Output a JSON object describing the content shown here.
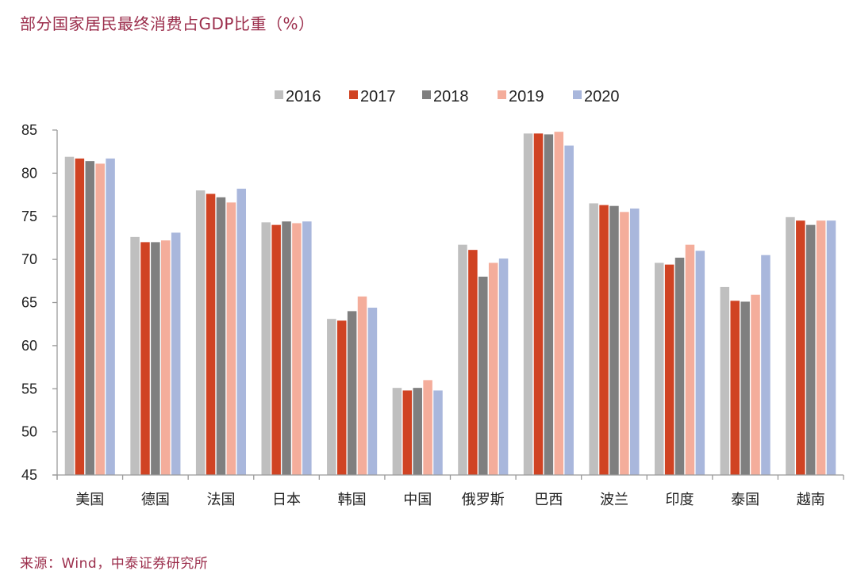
{
  "header": {
    "title": "部分国家居民最终消费占GDP比重（%）"
  },
  "footer": {
    "source": "来源：Wind，中泰证券研究所"
  },
  "chart_data": {
    "type": "bar",
    "title": "部分国家居民最终消费占GDP比重（%）",
    "xlabel": "",
    "ylabel": "",
    "ylim": [
      45,
      85
    ],
    "yticks": [
      45,
      50,
      55,
      60,
      65,
      70,
      75,
      80,
      85
    ],
    "grid": false,
    "legend_position": "top-center",
    "categories": [
      "美国",
      "德国",
      "法国",
      "日本",
      "韩国",
      "中国",
      "俄罗斯",
      "巴西",
      "波兰",
      "印度",
      "泰国",
      "越南"
    ],
    "series": [
      {
        "name": "2016",
        "color": "#bfbfbf",
        "values": [
          81.9,
          72.6,
          78.0,
          74.3,
          63.1,
          55.1,
          71.7,
          84.6,
          76.5,
          69.6,
          66.8,
          74.9
        ]
      },
      {
        "name": "2017",
        "color": "#d04323",
        "values": [
          81.7,
          72.0,
          77.6,
          74.0,
          62.9,
          54.8,
          71.1,
          84.6,
          76.3,
          69.4,
          65.2,
          74.5
        ]
      },
      {
        "name": "2018",
        "color": "#7f7f7f",
        "values": [
          81.4,
          72.0,
          77.2,
          74.4,
          64.0,
          55.1,
          68.0,
          84.5,
          76.2,
          70.2,
          65.1,
          74.0
        ]
      },
      {
        "name": "2019",
        "color": "#f4ad9b",
        "values": [
          81.1,
          72.2,
          76.6,
          74.2,
          65.7,
          56.0,
          69.6,
          84.8,
          75.5,
          71.7,
          65.9,
          74.5
        ]
      },
      {
        "name": "2020",
        "color": "#a9b7dc",
        "values": [
          81.7,
          73.1,
          78.2,
          74.4,
          64.4,
          54.8,
          70.1,
          83.2,
          75.9,
          71.0,
          70.5,
          74.5
        ]
      }
    ],
    "source": "来源：Wind，中泰证券研究所"
  }
}
